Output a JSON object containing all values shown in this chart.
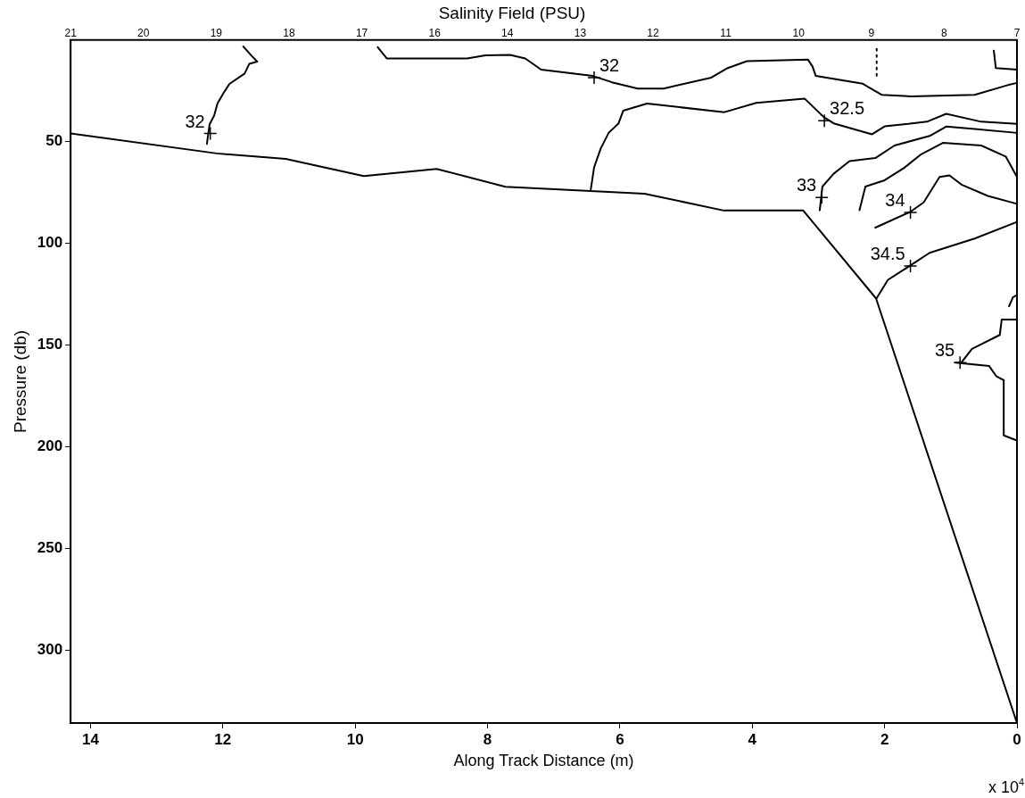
{
  "chart_data": {
    "type": "line",
    "title": "Salinity Field (PSU)",
    "xlabel": "Along Track Distance (m)",
    "ylabel": "Pressure (db)",
    "xlim": [
      14.3,
      0
    ],
    "xticks": [
      14,
      12,
      10,
      8,
      6,
      4,
      2,
      0
    ],
    "ylim": [
      336,
      0
    ],
    "yticks": [
      50,
      100,
      150,
      200,
      250,
      300
    ],
    "grid": false,
    "legend": false,
    "marker": "none",
    "line_style": "solid",
    "series": [
      {
        "color": "#000000",
        "x": [
          14.3,
          12.09,
          11.05,
          9.87,
          8.77,
          7.73,
          5.63,
          4.43,
          3.23,
          2.13,
          0
        ],
        "values": [
          46,
          55.8,
          58.5,
          66.9,
          63.4,
          72.2,
          75.6,
          83.9,
          83.9,
          127.1,
          336
        ]
      },
      {
        "color": "#000000",
        "x": [
          11.69,
          11.57,
          11.48,
          11.6,
          11.67,
          11.9,
          11.99,
          12.08,
          12.13,
          12.2,
          12.22,
          12.24
        ],
        "values": [
          3.2,
          7.6,
          10.6,
          11.7,
          16.5,
          21.6,
          26.1,
          31.2,
          37.1,
          41.5,
          46,
          51.1
        ]
      },
      {
        "color": "#000000",
        "x": [
          9.66,
          9.52,
          8.31,
          8.03,
          7.66,
          7.43,
          7.19,
          6.41,
          6.12,
          5.73,
          5.34,
          4.62,
          4.37,
          4.08,
          3.16,
          3.09,
          3.04,
          2.33,
          2.04,
          1.61,
          0.64,
          0.15,
          0
        ],
        "values": [
          3.5,
          9.1,
          9.1,
          7.6,
          7.3,
          9.1,
          14.6,
          17.7,
          20.8,
          23.9,
          23.9,
          18.5,
          13.8,
          10.4,
          9.6,
          13,
          17.7,
          21.5,
          27,
          27.7,
          27,
          22.3,
          21.1
        ]
      },
      {
        "color": "#000000",
        "x": [
          6.44,
          6.39,
          6.29,
          6.17,
          6.02,
          5.95,
          5.59,
          4.42,
          3.94,
          3.21,
          2.92,
          2.77,
          2.19,
          2,
          1.36,
          1.07,
          0.54,
          0
        ],
        "values": [
          73.6,
          62.7,
          53.4,
          45.7,
          41,
          34.8,
          31.3,
          35.5,
          30.9,
          28.8,
          37.9,
          41,
          46.4,
          42.5,
          40.2,
          36.3,
          40.2,
          41.3
        ]
      },
      {
        "color": "#000000",
        "x": [
          2.98,
          2.94,
          2.77,
          2.53,
          2.14,
          1.85,
          1.32,
          1.07,
          0.64,
          0
        ],
        "values": [
          83.7,
          72.1,
          65.8,
          59.6,
          58.1,
          51.9,
          47.2,
          42.6,
          43.8,
          45.7
        ]
      },
      {
        "color": "#000000",
        "x": [
          2.38,
          2.29,
          2,
          1.7,
          1.46,
          1.12,
          0.54,
          0.17,
          0
        ],
        "values": [
          83.7,
          72.1,
          69,
          62.8,
          56.5,
          50.6,
          51.9,
          57.3,
          67.4
        ]
      },
      {
        "color": "#000000",
        "x": [
          2.14,
          1.61,
          1.41,
          1.17,
          1.02,
          0.83,
          0.44,
          0
        ],
        "values": [
          92.3,
          84.5,
          79.9,
          67.4,
          66.6,
          71.3,
          76.7,
          80.6
        ]
      },
      {
        "color": "#000000",
        "x": [
          2.12,
          1.95,
          1.61,
          1.32,
          0.64,
          0
        ],
        "values": [
          127,
          118,
          110.9,
          104.7,
          97.7,
          89.5
        ]
      },
      {
        "color": "#000000",
        "x": [
          0,
          0.23,
          0.26,
          0.68,
          0.84,
          0.93,
          0.42,
          0.31,
          0.2,
          0.2,
          0
        ],
        "values": [
          137.5,
          137.5,
          145.1,
          152,
          158.7,
          158.7,
          160.4,
          165.5,
          167.3,
          194.5,
          197
        ]
      },
      {
        "color": "#000000",
        "x": [
          0.12,
          0.06,
          0
        ],
        "values": [
          131,
          126.5,
          125.5
        ]
      },
      {
        "color": "#000000",
        "x": [
          0.35,
          0.32,
          0
        ],
        "values": [
          5.2,
          13.8,
          14.6
        ]
      },
      {
        "color": "#000000",
        "line_style": "dotted",
        "x": [
          2.12,
          2.12
        ],
        "values": [
          4.4,
          17.7
        ]
      }
    ],
    "annotations": [
      {
        "text": "32",
        "x": 12.19,
        "y": 46
      },
      {
        "text": "32",
        "x": 6.39,
        "y": 18.5
      },
      {
        "text": "32.5",
        "x": 2.91,
        "y": 39.7
      },
      {
        "text": "33",
        "x": 2.95,
        "y": 77.5
      },
      {
        "text": "34",
        "x": 1.61,
        "y": 84.8
      },
      {
        "text": "34.5",
        "x": 1.61,
        "y": 111.2
      },
      {
        "text": "35",
        "x": 0.86,
        "y": 158.7
      },
      "x 10$^{4}$",
      "21",
      "20",
      "19",
      "18",
      "17",
      "16",
      "14",
      "13",
      "12",
      "11",
      "10",
      "9",
      "8",
      "7"
    ]
  }
}
